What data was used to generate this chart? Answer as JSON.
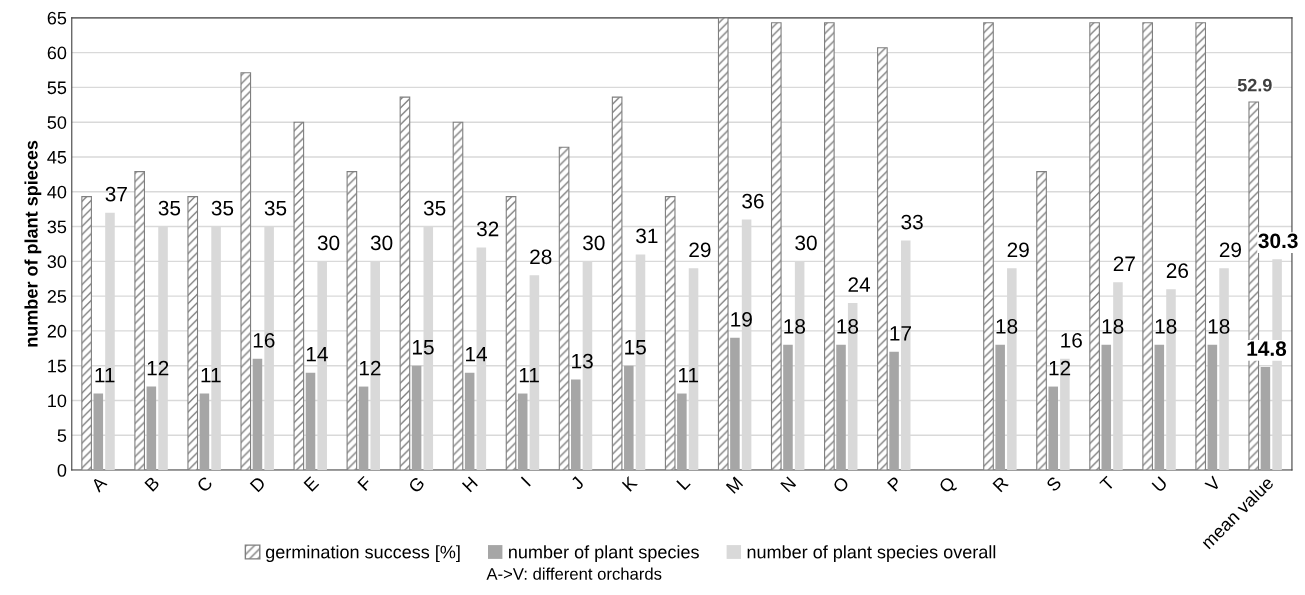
{
  "chart_data": {
    "type": "bar",
    "ylabel": "number of plant spieces",
    "categories": [
      "A",
      "B",
      "C",
      "D",
      "E",
      "F",
      "G",
      "H",
      "I",
      "J",
      "K",
      "L",
      "M",
      "N",
      "O",
      "P",
      "Q",
      "R",
      "S",
      "T",
      "U",
      "V",
      "mean value"
    ],
    "series": [
      {
        "name": "germination success [%]",
        "color": "#7f7f7f",
        "values": [
          39.3,
          42.9,
          39.3,
          57.1,
          50,
          42.9,
          53.6,
          50,
          39.3,
          46.4,
          53.6,
          39.3,
          65,
          64.3,
          64.3,
          60.7,
          null,
          64.3,
          42.9,
          64.3,
          64.3,
          64.3,
          52.9
        ],
        "value_labels": [
          null,
          null,
          null,
          null,
          null,
          null,
          null,
          null,
          null,
          null,
          null,
          null,
          null,
          null,
          null,
          null,
          null,
          null,
          null,
          null,
          null,
          null,
          "52.9"
        ]
      },
      {
        "name": "number of plant species",
        "color": "#a6a6a6",
        "values": [
          11,
          12,
          11,
          16,
          14,
          12,
          15,
          14,
          11,
          13,
          15,
          11,
          19,
          18,
          18,
          17,
          null,
          18,
          12,
          18,
          18,
          18,
          14.8
        ],
        "value_labels": [
          "11",
          "12",
          "11",
          "16",
          "14",
          "12",
          "15",
          "14",
          "11",
          "13",
          "15",
          "11",
          "19",
          "18",
          "18",
          "17",
          null,
          "18",
          "12",
          "18",
          "18",
          "18",
          "14.8"
        ]
      },
      {
        "name": "number of plant species overall",
        "color": "#d9d9d9",
        "values": [
          37,
          35,
          35,
          35,
          30,
          30,
          35,
          32,
          28,
          30,
          31,
          29,
          36,
          30,
          24,
          33,
          null,
          29,
          16,
          27,
          26,
          29,
          30.3
        ],
        "value_labels": [
          "37",
          "35",
          "35",
          "35",
          "30",
          "30",
          "35",
          "32",
          "28",
          "30",
          "31",
          "29",
          "36",
          "30",
          "24",
          "33",
          null,
          "29",
          "16",
          "27",
          "26",
          "29",
          "30.3"
        ]
      }
    ],
    "ylim": [
      0,
      65
    ],
    "yticks": [
      0,
      5,
      10,
      15,
      20,
      25,
      30,
      35,
      40,
      45,
      50,
      55,
      60,
      65
    ],
    "grid": "y",
    "legend": "bottom",
    "annotations": [
      "A->V: different orchards"
    ]
  }
}
